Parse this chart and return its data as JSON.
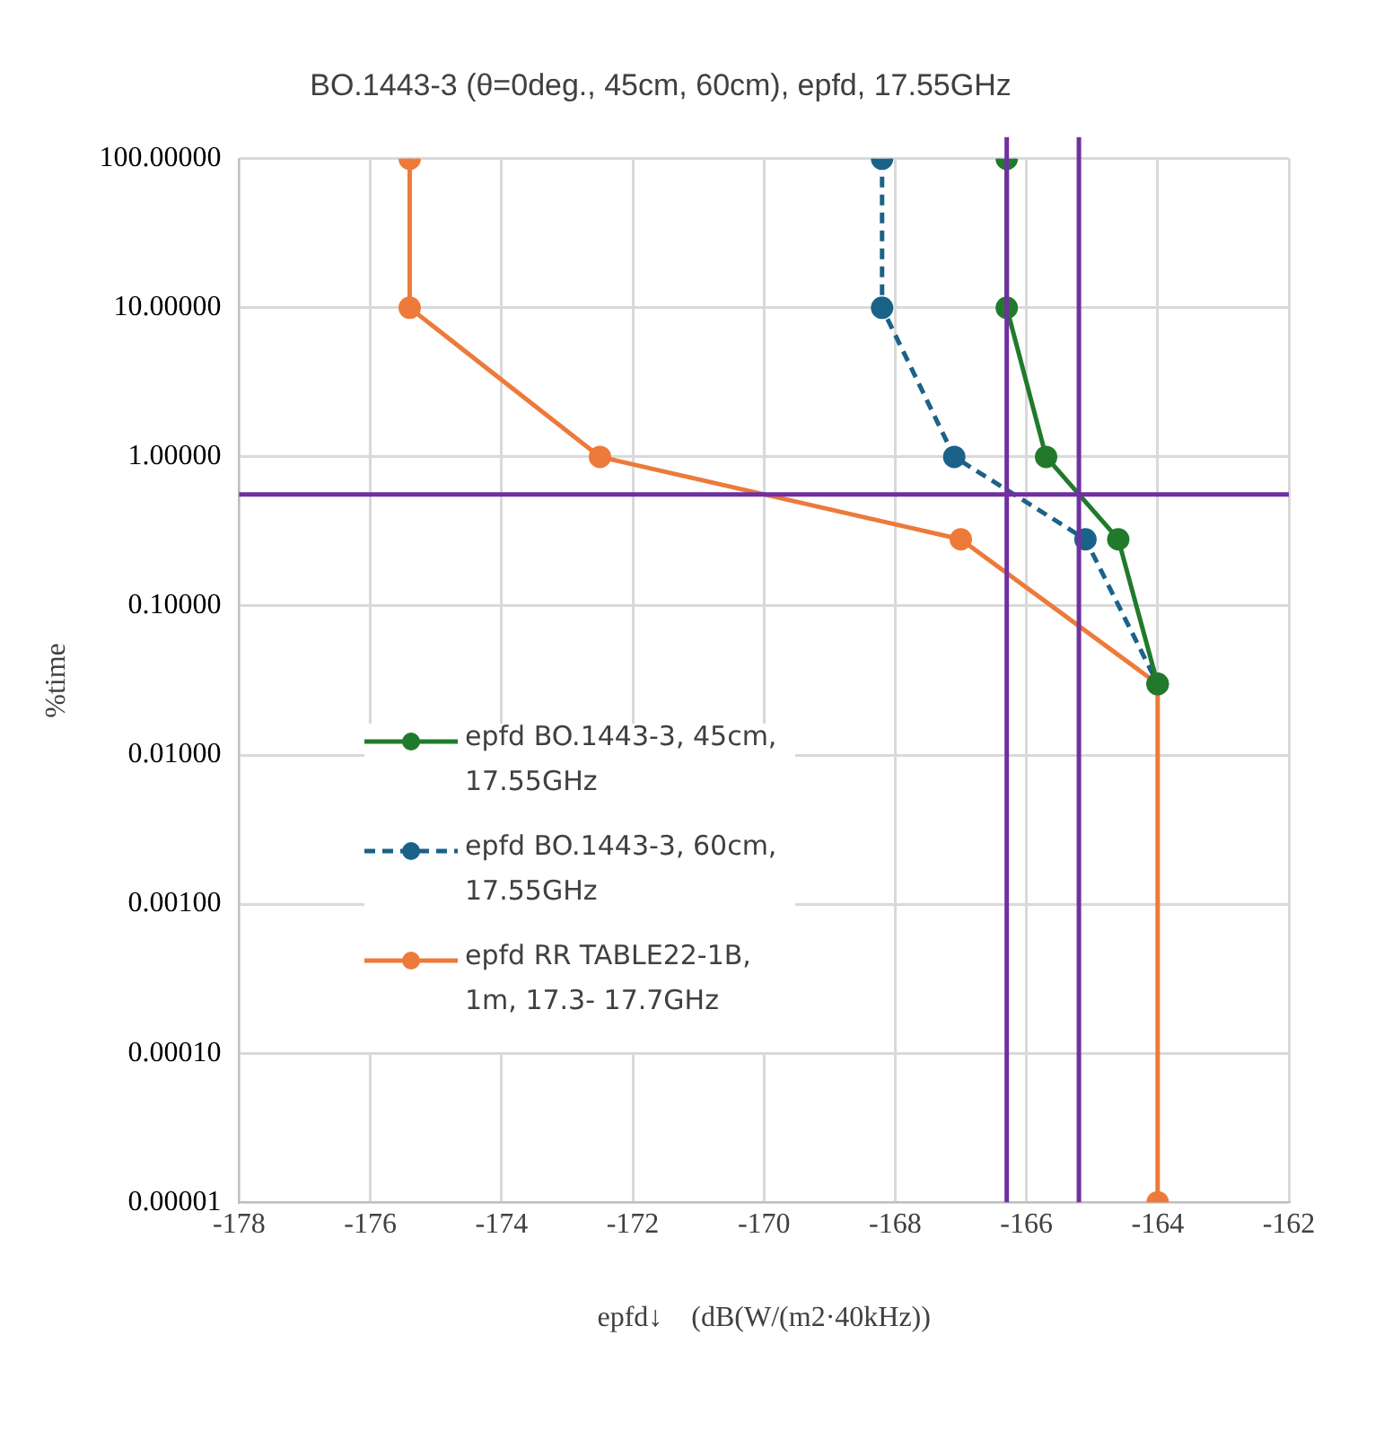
{
  "chart_data": {
    "type": "line",
    "title": "BO.1443-3 (θ=0deg., 45cm, 60cm), epfd, 17.55GHz",
    "xlabel": "epfd↓　(dB(W/(m2·40kHz))",
    "ylabel": "%time",
    "xlim": [
      -178,
      -162
    ],
    "xticks": [
      -178,
      -176,
      -174,
      -172,
      -170,
      -168,
      -166,
      -164,
      -162
    ],
    "ylim": [
      1e-05,
      100
    ],
    "log": "y",
    "yticks": [
      {
        "value": 100,
        "label": "100.00000"
      },
      {
        "value": 10,
        "label": "10.00000"
      },
      {
        "value": 1,
        "label": "1.00000"
      },
      {
        "value": 0.1,
        "label": "0.10000"
      },
      {
        "value": 0.01,
        "label": "0.01000"
      },
      {
        "value": 0.001,
        "label": "0.00100"
      },
      {
        "value": 0.0001,
        "label": "0.00010"
      },
      {
        "value": 1e-05,
        "label": "0.00001"
      }
    ],
    "grid": true,
    "legend": "left",
    "marker": "circle",
    "series": [
      {
        "name": "epfd BO.1443-3, 45cm, 17.55GHz",
        "color": "#217a2c",
        "line_style": "solid",
        "x": [
          -166.3,
          -166.3,
          -165.7,
          -164.6,
          -164
        ],
        "values": [
          100,
          10,
          1,
          0.28,
          0.03
        ]
      },
      {
        "name": "epfd BO.1443-3, 60cm, 17.55GHz",
        "color": "#1b6289",
        "line_style": "dashed",
        "x": [
          -168.2,
          -168.2,
          -167.1,
          -165.1,
          -164
        ],
        "values": [
          100,
          10,
          1,
          0.28,
          0.03
        ]
      },
      {
        "name": "epfd RR TABLE22-1B, 1m, 17.3- 17.7GHz",
        "color": "#ed7a3a",
        "line_style": "solid",
        "x": [
          -175.4,
          -175.4,
          -172.5,
          -167,
          -164,
          -164
        ],
        "values": [
          100,
          10,
          1,
          0.28,
          0.03,
          1e-05
        ]
      }
    ],
    "ref_lines": [
      {
        "axis": "x",
        "value": -166.3,
        "color": "#7030a0"
      },
      {
        "axis": "x",
        "value": -165.2,
        "color": "#7030a0"
      },
      {
        "axis": "y",
        "value": 0.56,
        "color": "#7030a0"
      }
    ]
  }
}
